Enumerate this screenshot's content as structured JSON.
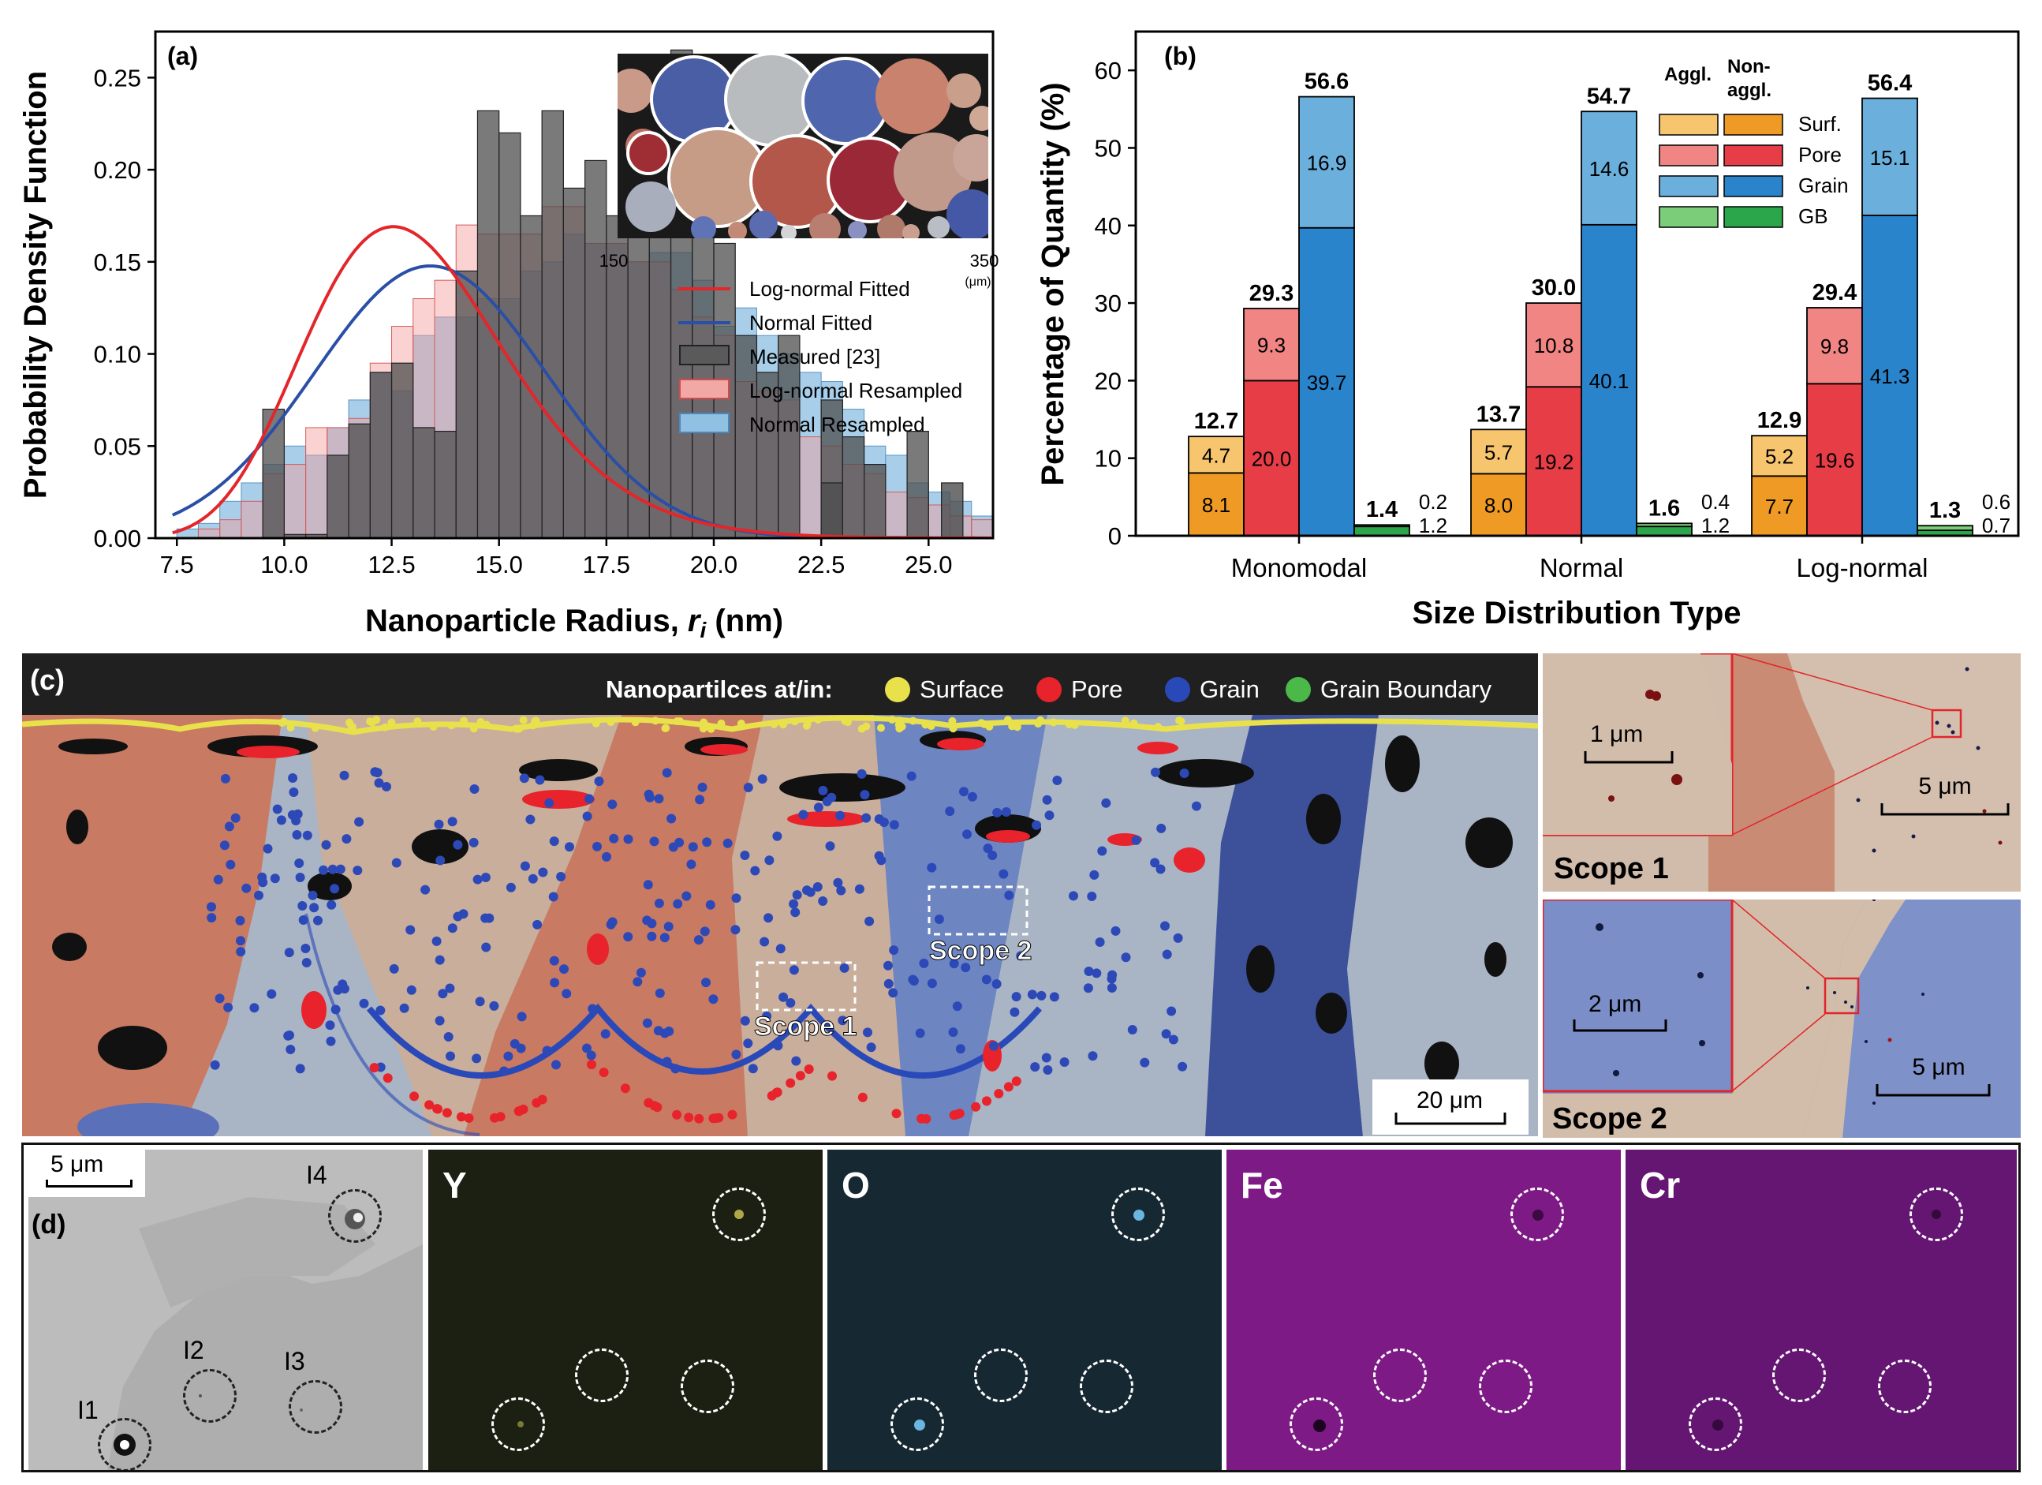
{
  "panel_a": {
    "label": "(a)",
    "inset_tick_left": "150",
    "inset_tick_right": "350",
    "inset_unit": "(μm)",
    "legend": [
      "Log-normal Fitted",
      "Normal Fitted",
      "Measured [23]",
      "Log-normal Resampled",
      "Normal Resampled"
    ]
  },
  "panel_b": {
    "label": "(b)",
    "legend_header_aggl": "Aggl.",
    "legend_header_nonaggl_1": "Non-",
    "legend_header_nonaggl_2": "aggl.",
    "legend_rows": [
      "Surf.",
      "Pore",
      "Grain",
      "GB"
    ]
  },
  "panel_c": {
    "label": "(c)",
    "legend_title": "Nanopartilces at/in:",
    "legend_items": [
      "Surface",
      "Pore",
      "Grain",
      "Grain Boundary"
    ],
    "scope1_label": "Scope 1",
    "scope2_label": "Scope 2",
    "scale_main": "20 μm",
    "scope1_inset_scale": "1 μm",
    "scope1_scale": "5 μm",
    "scope2_inset_scale": "2 μm",
    "scope2_scale": "5 μm",
    "scope1_title": "Scope 1",
    "scope2_title": "Scope  2"
  },
  "panel_d": {
    "label": "(d)",
    "scale": "5 μm",
    "inclusions": [
      "I1",
      "I2",
      "I3",
      "I4"
    ],
    "maps": [
      "Y",
      "O",
      "Fe",
      "Cr"
    ]
  },
  "colors": {
    "lognormal": "#e3262a",
    "normal": "#2a4fa6",
    "measured": "#555555",
    "surf_aggl": "#f7c56e",
    "surf_non": "#ef9a24",
    "pore_aggl": "#f08583",
    "pore_non": "#e63d46",
    "grain_aggl": "#6bb0dd",
    "grain_non": "#2a84cc",
    "gb_aggl": "#7ccd7a",
    "gb_non": "#2ba64b"
  },
  "chart_data": [
    {
      "type": "histogram",
      "panel": "a",
      "xlabel": "Nanoparticle Radius, r_i (nm)",
      "ylabel": "Probability Density Function",
      "xlim": [
        7,
        26.5
      ],
      "ylim": [
        0,
        0.275
      ],
      "xticks": [
        "7.5",
        "10.0",
        "12.5",
        "15.0",
        "17.5",
        "20.0",
        "22.5",
        "25.0"
      ],
      "yticks": [
        "0.00",
        "0.05",
        "0.10",
        "0.15",
        "0.20",
        "0.25"
      ],
      "bin_start": 7.5,
      "bin_width": 0.5,
      "measured": [
        0,
        0,
        0,
        0.0001,
        0.07,
        0.002,
        0.002,
        0.045,
        0.062,
        0.09,
        0.095,
        0.06,
        0.058,
        0.145,
        0.232,
        0.22,
        0.175,
        0.232,
        0.19,
        0.205,
        0.175,
        0.19,
        0.235,
        0.265,
        0.2,
        0.16,
        0.11,
        0.09,
        0.11,
        0.0001,
        0.075,
        0.055,
        0.04,
        0.0001,
        0.058,
        0.0001,
        0.0001,
        0.0001,
        0.0001,
        0.0001,
        0.0001,
        0.0001,
        0.0001,
        0.0001,
        0.0001,
        0.0001,
        0.0001,
        0.0001,
        0.0001,
        0.0001,
        0.0001,
        0.0001,
        0.0001,
        0.0001,
        0.0001,
        0.0001,
        0.0001,
        0.0001,
        0.0001,
        0.0001,
        0.0001,
        0.0001,
        0.0001,
        0.0001,
        0.0001,
        0.0001,
        0.0001,
        0.0001,
        0.0001,
        0.0001,
        0.0001,
        0.0001,
        0.0001,
        0.0001,
        0.0001,
        0.0001,
        0.0001,
        0.0001,
        0.0001,
        0.0001
      ],
      "measured_extra": [
        {
          "x": 22.75,
          "y": 0.03
        },
        {
          "x": 25.55,
          "y": 0.03
        }
      ],
      "lognormal_resampled": [
        0.0,
        0.005,
        0.01,
        0.02,
        0.035,
        0.04,
        0.06,
        0.06,
        0.065,
        0.095,
        0.115,
        0.13,
        0.14,
        0.17,
        0.165,
        0.165,
        0.165,
        0.18,
        0.18,
        0.16,
        0.16,
        0.15,
        0.15,
        0.135,
        0.12,
        0.11,
        0.085,
        0.08,
        0.075,
        0.055,
        0.05,
        0.04,
        0.035,
        0.025,
        0.022,
        0.018,
        0.012,
        0.01,
        0.008,
        0.006,
        0.005,
        0.004,
        0.003,
        0.002
      ],
      "normal_resampled": [
        0.005,
        0.008,
        0.02,
        0.03,
        0.04,
        0.05,
        0.045,
        0.06,
        0.075,
        0.09,
        0.08,
        0.11,
        0.12,
        0.12,
        0.13,
        0.13,
        0.145,
        0.15,
        0.165,
        0.16,
        0.16,
        0.15,
        0.155,
        0.155,
        0.14,
        0.115,
        0.125,
        0.11,
        0.1,
        0.09,
        0.085,
        0.07,
        0.05,
        0.045,
        0.03,
        0.025,
        0.02,
        0.012,
        0.01,
        0.005
      ],
      "lognormal_fit": {
        "mu": 2.563,
        "sigma": 0.185
      },
      "normal_fit": {
        "mean": 13.4,
        "sd": 2.7
      },
      "series": [
        "Log-normal Fitted",
        "Normal Fitted",
        "Measured [23]",
        "Log-normal Resampled",
        "Normal Resampled"
      ]
    },
    {
      "type": "bar",
      "panel": "b",
      "stacked": true,
      "xlabel": "Size Distribution Type",
      "ylabel": "Percentage of Quantity (%)",
      "ylim": [
        0,
        65
      ],
      "yticks": [
        "0",
        "10",
        "20",
        "30",
        "40",
        "50",
        "60"
      ],
      "categories": [
        "Monomodal",
        "Normal",
        "Log-normal"
      ],
      "series": [
        {
          "name": "Surf.",
          "non_aggl": [
            8.1,
            8.0,
            7.7
          ],
          "aggl": [
            4.7,
            5.7,
            5.2
          ],
          "total": [
            "12.7",
            "13.7",
            "12.9"
          ]
        },
        {
          "name": "Pore",
          "non_aggl": [
            20.0,
            19.2,
            19.6
          ],
          "aggl": [
            9.3,
            10.8,
            9.8
          ],
          "total": [
            "29.3",
            "30.0",
            "29.4"
          ]
        },
        {
          "name": "Grain",
          "non_aggl": [
            39.7,
            40.1,
            41.3
          ],
          "aggl": [
            16.9,
            14.6,
            15.1
          ],
          "total": [
            "56.6",
            "54.7",
            "56.4"
          ]
        },
        {
          "name": "GB",
          "non_aggl": [
            1.2,
            1.2,
            0.7
          ],
          "aggl": [
            0.2,
            0.4,
            0.6
          ],
          "total": [
            "1.4",
            "1.6",
            "1.3"
          ]
        }
      ]
    }
  ]
}
